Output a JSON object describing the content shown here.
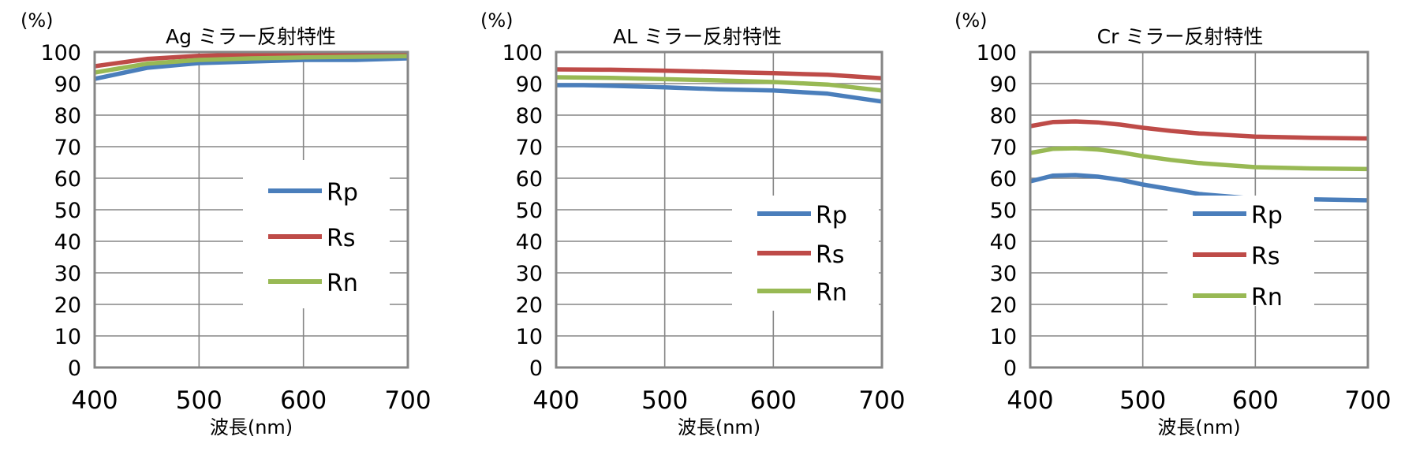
{
  "colors": {
    "Rp": "#4a7ebb",
    "Rs": "#be4b48",
    "Rn": "#98b954",
    "frame": "#868686",
    "grid": "#868686"
  },
  "chart_data": [
    {
      "type": "line",
      "title": "Ag ミラー反射特性",
      "ylabel": "(%)",
      "xlabel": "波長(nm)",
      "xlim": [
        400,
        700
      ],
      "ylim": [
        0,
        100
      ],
      "x_ticks": [
        "400",
        "500",
        "600",
        "700"
      ],
      "y_ticks": [
        "0",
        "10",
        "20",
        "30",
        "40",
        "50",
        "60",
        "70",
        "80",
        "90",
        "100"
      ],
      "grid": true,
      "legend_position": "center-right",
      "series": [
        {
          "name": "Rp",
          "x": [
            400,
            450,
            500,
            550,
            600,
            650,
            700
          ],
          "values": [
            91.5,
            95,
            96.5,
            97,
            97.5,
            97.5,
            98
          ]
        },
        {
          "name": "Rs",
          "x": [
            400,
            450,
            500,
            550,
            600,
            650,
            700
          ],
          "values": [
            95.5,
            97.8,
            98.8,
            99.2,
            99.3,
            99.4,
            99.5
          ]
        },
        {
          "name": "Rn",
          "x": [
            400,
            450,
            500,
            550,
            600,
            650,
            700
          ],
          "values": [
            93.5,
            96.3,
            97.5,
            98,
            98.3,
            98.5,
            98.7
          ]
        }
      ]
    },
    {
      "type": "line",
      "title": "AL ミラー反射特性",
      "ylabel": "(%)",
      "xlabel": "波長(nm)",
      "xlim": [
        400,
        700
      ],
      "ylim": [
        0,
        100
      ],
      "x_ticks": [
        "400",
        "500",
        "600",
        "700"
      ],
      "y_ticks": [
        "0",
        "10",
        "20",
        "30",
        "40",
        "50",
        "60",
        "70",
        "80",
        "90",
        "100"
      ],
      "grid": true,
      "legend_position": "lower-right",
      "series": [
        {
          "name": "Rp",
          "x": [
            400,
            425,
            450,
            500,
            550,
            600,
            650,
            700
          ],
          "values": [
            89.5,
            89.5,
            89.3,
            88.8,
            88.2,
            87.8,
            86.8,
            84.3
          ]
        },
        {
          "name": "Rs",
          "x": [
            400,
            450,
            500,
            550,
            600,
            650,
            700
          ],
          "values": [
            94.5,
            94.4,
            94.1,
            93.7,
            93.3,
            92.8,
            91.7
          ]
        },
        {
          "name": "Rn",
          "x": [
            400,
            450,
            500,
            550,
            600,
            650,
            700
          ],
          "values": [
            92,
            91.8,
            91.4,
            91,
            90.5,
            89.7,
            87.8
          ]
        }
      ]
    },
    {
      "type": "line",
      "title": "Cr ミラー反射特性",
      "ylabel": "(%)",
      "xlabel": "波長(nm)",
      "xlim": [
        400,
        700
      ],
      "ylim": [
        0,
        100
      ],
      "x_ticks": [
        "400",
        "500",
        "600",
        "700"
      ],
      "y_ticks": [
        "0",
        "10",
        "20",
        "30",
        "40",
        "50",
        "60",
        "70",
        "80",
        "90",
        "100"
      ],
      "grid": true,
      "legend_position": "lower-right",
      "series": [
        {
          "name": "Rp",
          "x": [
            400,
            420,
            440,
            460,
            480,
            500,
            525,
            550,
            600,
            650,
            700
          ],
          "values": [
            59,
            60.8,
            61,
            60.5,
            59.5,
            58,
            56.5,
            55,
            53.5,
            53.3,
            53
          ]
        },
        {
          "name": "Rs",
          "x": [
            400,
            420,
            440,
            460,
            480,
            500,
            525,
            550,
            600,
            650,
            700
          ],
          "values": [
            76.5,
            77.8,
            78,
            77.7,
            77,
            76,
            75,
            74.2,
            73.2,
            72.8,
            72.6
          ]
        },
        {
          "name": "Rn",
          "x": [
            400,
            420,
            440,
            460,
            480,
            500,
            525,
            550,
            600,
            650,
            700
          ],
          "values": [
            68,
            69.3,
            69.5,
            69.1,
            68.2,
            67,
            65.8,
            64.8,
            63.5,
            63.1,
            62.9
          ]
        }
      ]
    }
  ]
}
